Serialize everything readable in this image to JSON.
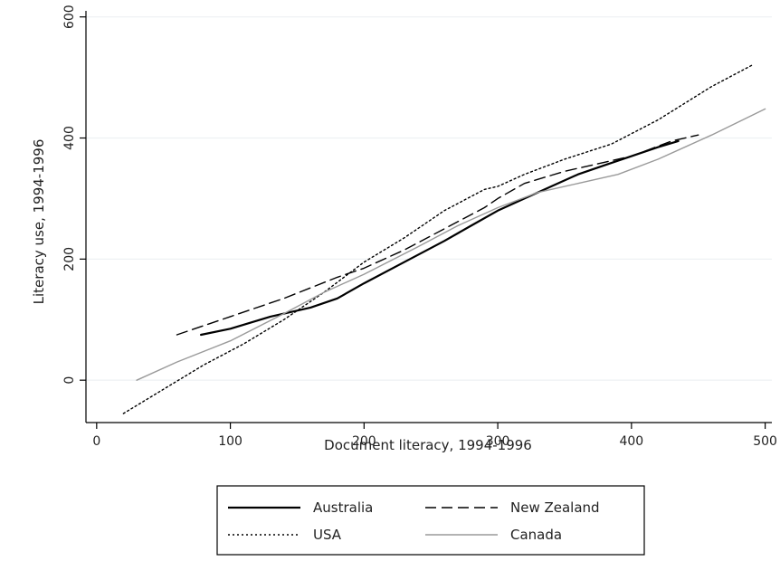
{
  "chart_data": {
    "type": "line",
    "xlabel": "Document literacy, 1994-1996",
    "ylabel": "Literacy use, 1994-1996",
    "xlim": [
      -8,
      505
    ],
    "ylim": [
      -70,
      610
    ],
    "xticks": [
      0,
      100,
      200,
      300,
      400,
      500
    ],
    "yticks": [
      0,
      200,
      400,
      600
    ],
    "xtick_labels": [
      "0",
      "100",
      "200",
      "300",
      "400",
      "500"
    ],
    "ytick_labels": [
      "0",
      "200",
      "400",
      "600"
    ],
    "grid": "horizontal",
    "legend_position": "bottom",
    "series": [
      {
        "name": "Australia",
        "style": "solid",
        "color": "#000000",
        "width": 2.2,
        "x": [
          78,
          100,
          130,
          160,
          180,
          200,
          230,
          260,
          280,
          300,
          320,
          340,
          360,
          380,
          400,
          420,
          435
        ],
        "y": [
          75,
          85,
          105,
          120,
          135,
          160,
          195,
          230,
          255,
          280,
          300,
          320,
          340,
          355,
          370,
          385,
          395
        ]
      },
      {
        "name": "New Zealand",
        "style": "dashed",
        "color": "#000000",
        "width": 1.4,
        "x": [
          60,
          100,
          140,
          180,
          200,
          230,
          260,
          290,
          300,
          320,
          350,
          380,
          400,
          430,
          450
        ],
        "y": [
          75,
          105,
          135,
          170,
          185,
          215,
          250,
          285,
          300,
          325,
          345,
          360,
          370,
          395,
          405
        ]
      },
      {
        "name": "USA",
        "style": "dotted",
        "color": "#000000",
        "width": 1.4,
        "x": [
          20,
          50,
          80,
          110,
          140,
          170,
          200,
          230,
          260,
          290,
          300,
          320,
          350,
          385,
          420,
          460,
          490
        ],
        "y": [
          -55,
          -15,
          25,
          60,
          100,
          145,
          195,
          235,
          280,
          315,
          320,
          340,
          365,
          390,
          430,
          485,
          520
        ]
      },
      {
        "name": "Canada",
        "style": "solid",
        "color": "#9a9a9a",
        "width": 1.4,
        "x": [
          30,
          60,
          100,
          140,
          170,
          200,
          240,
          270,
          300,
          330,
          360,
          390,
          420,
          460,
          500
        ],
        "y": [
          0,
          30,
          65,
          110,
          145,
          175,
          220,
          255,
          285,
          310,
          325,
          340,
          365,
          405,
          448
        ]
      }
    ]
  }
}
